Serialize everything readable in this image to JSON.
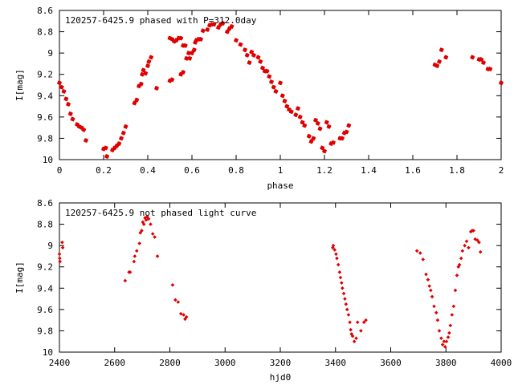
{
  "chart_data": [
    {
      "type": "scatter",
      "title": "120257-6425.9 phased with P=312.0day",
      "xlabel": "phase",
      "ylabel": "I[mag]",
      "xlim": [
        0,
        2
      ],
      "ylim": [
        10,
        8.6
      ],
      "y_inverted": true,
      "grid": false,
      "x_ticks": [
        "0",
        "0.2",
        "0.4",
        "0.6",
        "0.8",
        "1",
        "1.2",
        "1.4",
        "1.6",
        "1.8",
        "2"
      ],
      "y_ticks": [
        "8.6",
        "8.8",
        "9",
        "9.2",
        "9.4",
        "9.6",
        "9.8",
        "10"
      ],
      "marker_color": "#e00000",
      "points": [
        [
          0.0,
          9.28
        ],
        [
          0.01,
          9.32
        ],
        [
          0.02,
          9.36
        ],
        [
          0.03,
          9.43
        ],
        [
          0.04,
          9.48
        ],
        [
          0.05,
          9.57
        ],
        [
          0.06,
          9.62
        ],
        [
          0.08,
          9.67
        ],
        [
          0.09,
          9.69
        ],
        [
          0.1,
          9.7
        ],
        [
          0.11,
          9.72
        ],
        [
          0.12,
          9.82
        ],
        [
          0.2,
          9.9
        ],
        [
          0.21,
          9.89
        ],
        [
          0.215,
          9.97
        ],
        [
          0.24,
          9.91
        ],
        [
          0.25,
          9.89
        ],
        [
          0.26,
          9.87
        ],
        [
          0.27,
          9.85
        ],
        [
          0.28,
          9.8
        ],
        [
          0.29,
          9.75
        ],
        [
          0.3,
          9.69
        ],
        [
          0.34,
          9.47
        ],
        [
          0.35,
          9.44
        ],
        [
          0.36,
          9.31
        ],
        [
          0.37,
          9.29
        ],
        [
          0.375,
          9.2
        ],
        [
          0.38,
          9.16
        ],
        [
          0.39,
          9.19
        ],
        [
          0.4,
          9.12
        ],
        [
          0.405,
          9.08
        ],
        [
          0.415,
          9.04
        ],
        [
          0.44,
          9.33
        ],
        [
          0.5,
          9.26
        ],
        [
          0.51,
          9.25
        ],
        [
          0.5,
          8.86
        ],
        [
          0.51,
          8.87
        ],
        [
          0.52,
          8.89
        ],
        [
          0.53,
          8.88
        ],
        [
          0.54,
          8.86
        ],
        [
          0.55,
          8.86
        ],
        [
          0.56,
          8.93
        ],
        [
          0.57,
          8.93
        ],
        [
          0.575,
          9.05
        ],
        [
          0.585,
          9.0
        ],
        [
          0.59,
          9.05
        ],
        [
          0.6,
          9.0
        ],
        [
          0.61,
          8.97
        ],
        [
          0.615,
          8.9
        ],
        [
          0.62,
          8.88
        ],
        [
          0.63,
          8.87
        ],
        [
          0.64,
          8.87
        ],
        [
          0.55,
          9.2
        ],
        [
          0.56,
          9.18
        ],
        [
          0.65,
          8.79
        ],
        [
          0.67,
          8.78
        ],
        [
          0.68,
          8.74
        ],
        [
          0.69,
          8.73
        ],
        [
          0.7,
          8.73
        ],
        [
          0.72,
          8.76
        ],
        [
          0.73,
          8.73
        ],
        [
          0.74,
          8.72
        ],
        [
          0.76,
          8.8
        ],
        [
          0.77,
          8.77
        ],
        [
          0.78,
          8.75
        ],
        [
          0.8,
          8.88
        ],
        [
          0.82,
          8.92
        ],
        [
          0.84,
          8.97
        ],
        [
          0.85,
          9.02
        ],
        [
          0.86,
          9.09
        ],
        [
          0.87,
          8.99
        ],
        [
          0.88,
          9.02
        ],
        [
          0.9,
          9.04
        ],
        [
          0.91,
          9.08
        ],
        [
          0.92,
          9.14
        ],
        [
          0.93,
          9.17
        ],
        [
          0.94,
          9.17
        ],
        [
          0.95,
          9.22
        ],
        [
          0.96,
          9.27
        ],
        [
          0.97,
          9.32
        ],
        [
          0.98,
          9.36
        ],
        [
          1.0,
          9.28
        ],
        [
          1.01,
          9.4
        ],
        [
          1.02,
          9.45
        ],
        [
          1.03,
          9.5
        ],
        [
          1.04,
          9.53
        ],
        [
          1.05,
          9.55
        ],
        [
          1.07,
          9.58
        ],
        [
          1.08,
          9.52
        ],
        [
          1.09,
          9.6
        ],
        [
          1.1,
          9.65
        ],
        [
          1.11,
          9.68
        ],
        [
          1.13,
          9.78
        ],
        [
          1.14,
          9.83
        ],
        [
          1.15,
          9.8
        ],
        [
          1.16,
          9.63
        ],
        [
          1.17,
          9.66
        ],
        [
          1.18,
          9.71
        ],
        [
          1.19,
          9.89
        ],
        [
          1.2,
          9.92
        ],
        [
          1.21,
          9.65
        ],
        [
          1.22,
          9.69
        ],
        [
          1.23,
          9.85
        ],
        [
          1.24,
          9.84
        ],
        [
          1.27,
          9.8
        ],
        [
          1.28,
          9.8
        ],
        [
          1.29,
          9.75
        ],
        [
          1.3,
          9.74
        ],
        [
          1.31,
          9.68
        ],
        [
          1.7,
          9.11
        ],
        [
          1.71,
          9.12
        ],
        [
          1.72,
          9.08
        ],
        [
          1.73,
          8.97
        ],
        [
          1.75,
          9.04
        ],
        [
          1.87,
          9.04
        ],
        [
          1.9,
          9.06
        ],
        [
          1.91,
          9.06
        ],
        [
          1.92,
          9.09
        ],
        [
          1.94,
          9.15
        ],
        [
          1.95,
          9.15
        ],
        [
          2.0,
          9.28
        ]
      ]
    },
    {
      "type": "scatter",
      "title": "120257-6425.9 not phased light curve",
      "xlabel": "hjd0",
      "ylabel": "I[mag]",
      "xlim": [
        2400,
        4000
      ],
      "ylim": [
        10,
        8.6
      ],
      "y_inverted": true,
      "grid": false,
      "x_ticks": [
        "2400",
        "2600",
        "2800",
        "3000",
        "3200",
        "3400",
        "3600",
        "3800",
        "4000"
      ],
      "y_ticks": [
        "8.6",
        "8.8",
        "9",
        "9.2",
        "9.4",
        "9.6",
        "9.8",
        "10"
      ],
      "marker_color": "#e00000",
      "points": [
        [
          2400,
          9.08
        ],
        [
          2401,
          9.12
        ],
        [
          2402,
          9.15
        ],
        [
          2410,
          8.97
        ],
        [
          2412,
          9.02
        ],
        [
          2638,
          9.33
        ],
        [
          2652,
          9.25
        ],
        [
          2656,
          9.25
        ],
        [
          2670,
          9.15
        ],
        [
          2673,
          9.1
        ],
        [
          2680,
          9.05
        ],
        [
          2690,
          8.98
        ],
        [
          2693,
          8.88
        ],
        [
          2698,
          8.86
        ],
        [
          2702,
          8.78
        ],
        [
          2706,
          8.8
        ],
        [
          2710,
          8.74
        ],
        [
          2714,
          8.76
        ],
        [
          2718,
          8.73
        ],
        [
          2723,
          8.75
        ],
        [
          2730,
          8.8
        ],
        [
          2738,
          8.89
        ],
        [
          2745,
          8.92
        ],
        [
          2755,
          9.1
        ],
        [
          2810,
          9.37
        ],
        [
          2820,
          9.51
        ],
        [
          2830,
          9.53
        ],
        [
          2840,
          9.64
        ],
        [
          2850,
          9.65
        ],
        [
          2855,
          9.69
        ],
        [
          2860,
          9.67
        ],
        [
          3390,
          9.02
        ],
        [
          3392,
          9.0
        ],
        [
          3397,
          9.04
        ],
        [
          3402,
          9.08
        ],
        [
          3405,
          9.12
        ],
        [
          3410,
          9.18
        ],
        [
          3415,
          9.25
        ],
        [
          3418,
          9.3
        ],
        [
          3422,
          9.35
        ],
        [
          3425,
          9.4
        ],
        [
          3430,
          9.45
        ],
        [
          3434,
          9.5
        ],
        [
          3438,
          9.55
        ],
        [
          3442,
          9.6
        ],
        [
          3447,
          9.65
        ],
        [
          3452,
          9.72
        ],
        [
          3455,
          9.79
        ],
        [
          3458,
          9.83
        ],
        [
          3462,
          9.85
        ],
        [
          3468,
          9.9
        ],
        [
          3475,
          9.87
        ],
        [
          3480,
          9.72
        ],
        [
          3492,
          9.8
        ],
        [
          3503,
          9.72
        ],
        [
          3510,
          9.7
        ],
        [
          3695,
          9.05
        ],
        [
          3707,
          9.07
        ],
        [
          3717,
          9.13
        ],
        [
          3728,
          9.27
        ],
        [
          3735,
          9.32
        ],
        [
          3740,
          9.38
        ],
        [
          3745,
          9.42
        ],
        [
          3750,
          9.48
        ],
        [
          3757,
          9.57
        ],
        [
          3765,
          9.63
        ],
        [
          3770,
          9.7
        ],
        [
          3776,
          9.8
        ],
        [
          3783,
          9.87
        ],
        [
          3788,
          9.93
        ],
        [
          3793,
          9.9
        ],
        [
          3797,
          9.95
        ],
        [
          3802,
          9.9
        ],
        [
          3808,
          9.86
        ],
        [
          3812,
          9.82
        ],
        [
          3816,
          9.75
        ],
        [
          3822,
          9.65
        ],
        [
          3828,
          9.57
        ],
        [
          3834,
          9.42
        ],
        [
          3840,
          9.28
        ],
        [
          3845,
          9.2
        ],
        [
          3849,
          9.18
        ],
        [
          3855,
          9.12
        ],
        [
          3860,
          9.05
        ],
        [
          3868,
          9.0
        ],
        [
          3875,
          8.96
        ],
        [
          3882,
          9.02
        ],
        [
          3890,
          8.87
        ],
        [
          3895,
          8.86
        ],
        [
          3900,
          8.86
        ],
        [
          3906,
          8.94
        ],
        [
          3914,
          8.95
        ],
        [
          3920,
          8.97
        ],
        [
          3925,
          9.06
        ]
      ]
    }
  ]
}
